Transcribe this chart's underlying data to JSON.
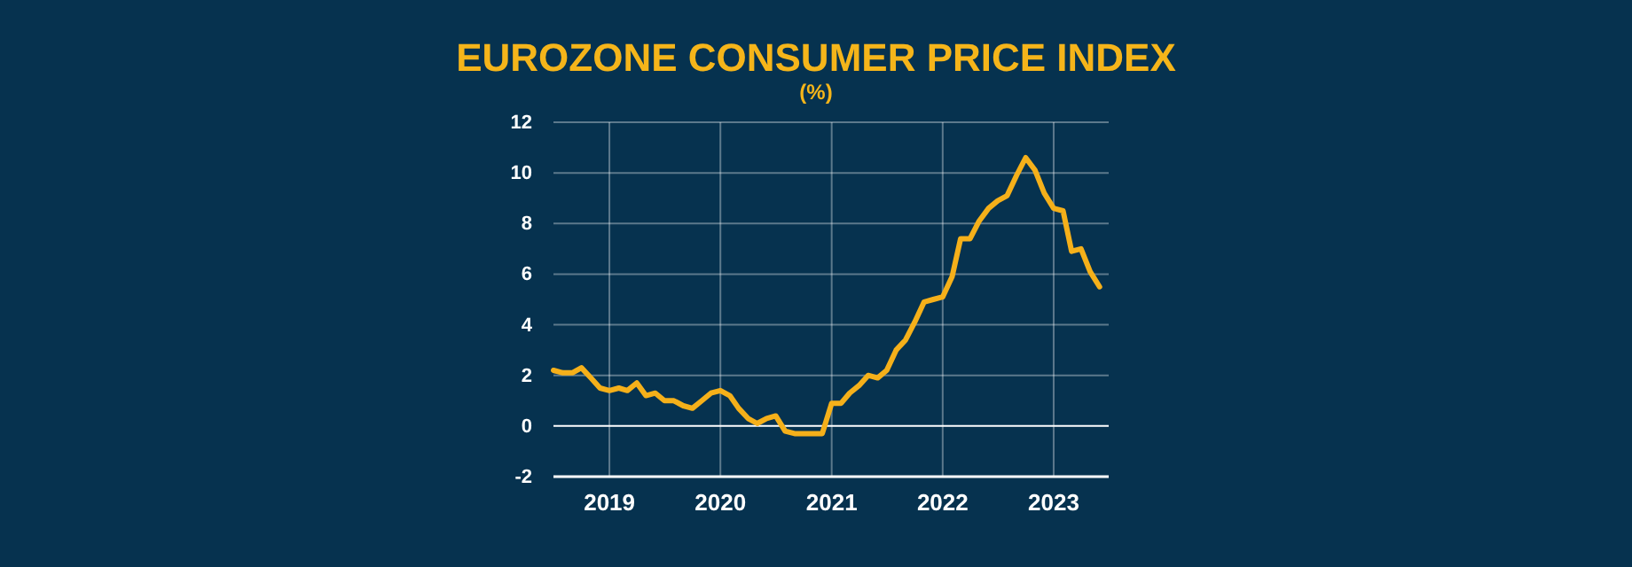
{
  "chart_data": {
    "type": "line",
    "title": "EUROZONE CONSUMER PRICE INDEX",
    "subtitle": "(%)",
    "x": [
      "2018-07",
      "2018-08",
      "2018-09",
      "2018-10",
      "2018-11",
      "2018-12",
      "2019-01",
      "2019-02",
      "2019-03",
      "2019-04",
      "2019-05",
      "2019-06",
      "2019-07",
      "2019-08",
      "2019-09",
      "2019-10",
      "2019-11",
      "2019-12",
      "2020-01",
      "2020-02",
      "2020-03",
      "2020-04",
      "2020-05",
      "2020-06",
      "2020-07",
      "2020-08",
      "2020-09",
      "2020-10",
      "2020-11",
      "2020-12",
      "2021-01",
      "2021-02",
      "2021-03",
      "2021-04",
      "2021-05",
      "2021-06",
      "2021-07",
      "2021-08",
      "2021-09",
      "2021-10",
      "2021-11",
      "2021-12",
      "2022-01",
      "2022-02",
      "2022-03",
      "2022-04",
      "2022-05",
      "2022-06",
      "2022-07",
      "2022-08",
      "2022-09",
      "2022-10",
      "2022-11",
      "2022-12",
      "2023-01",
      "2023-02",
      "2023-03",
      "2023-04",
      "2023-05",
      "2023-06"
    ],
    "series": [
      {
        "color": "#f5b01a",
        "values": [
          2.2,
          2.1,
          2.1,
          2.3,
          1.9,
          1.5,
          1.4,
          1.5,
          1.4,
          1.7,
          1.2,
          1.3,
          1.0,
          1.0,
          0.8,
          0.7,
          1.0,
          1.3,
          1.4,
          1.2,
          0.7,
          0.3,
          0.1,
          0.3,
          0.4,
          -0.2,
          -0.3,
          -0.3,
          -0.3,
          -0.3,
          0.9,
          0.9,
          1.3,
          1.6,
          2.0,
          1.9,
          2.2,
          3.0,
          3.4,
          4.1,
          4.9,
          5.0,
          5.1,
          5.9,
          7.4,
          7.4,
          8.1,
          8.6,
          8.9,
          9.1,
          9.9,
          10.6,
          10.1,
          9.2,
          8.6,
          8.5,
          6.9,
          7.0,
          6.1,
          5.5
        ]
      }
    ],
    "xlim": [
      "2018-07",
      "2023-07"
    ],
    "xticks": [
      {
        "value": "2019-01",
        "label": "2019"
      },
      {
        "value": "2020-01",
        "label": "2020"
      },
      {
        "value": "2021-01",
        "label": "2021"
      },
      {
        "value": "2022-01",
        "label": "2022"
      },
      {
        "value": "2023-01",
        "label": "2023"
      }
    ],
    "ylim": [
      -2,
      12
    ],
    "yticks": [
      -2,
      0,
      2,
      4,
      6,
      8,
      10,
      12
    ],
    "grid": true,
    "marker": "none",
    "line_style": "solid"
  }
}
